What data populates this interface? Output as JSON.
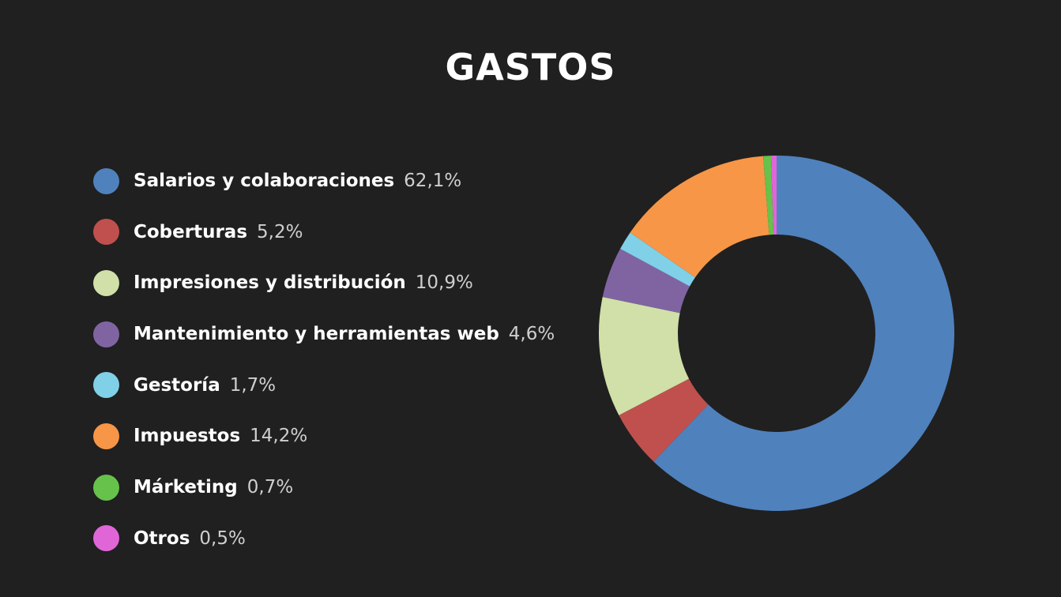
{
  "chart_data": {
    "type": "pie",
    "variant": "donut",
    "title": "GASTOS",
    "legend_position": "left",
    "categories": [
      "Salarios y colaboraciones",
      "Coberturas",
      "Impresiones y distribución",
      "Mantenimiento y herramientas web",
      "Gestoría",
      "Impuestos",
      "Márketing",
      "Otros"
    ],
    "values": [
      62.1,
      5.2,
      10.9,
      4.6,
      1.7,
      14.2,
      0.7,
      0.5
    ],
    "value_labels": [
      "62,1%",
      "5,2%",
      "10,9%",
      "4,6%",
      "1,7%",
      "14,2%",
      "0,7%",
      "0,5%"
    ],
    "colors": [
      "#4f81bd",
      "#c0504d",
      "#d0e0a8",
      "#8064a2",
      "#80d0e8",
      "#f79646",
      "#66c24a",
      "#e066d8"
    ],
    "direction": "clockwise",
    "start_angle": "top"
  }
}
